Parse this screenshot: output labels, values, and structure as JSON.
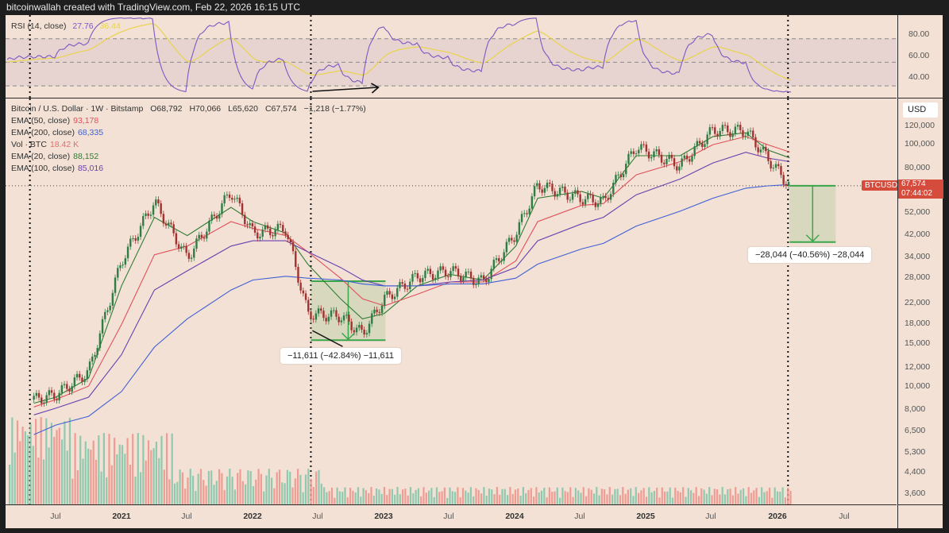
{
  "header": {
    "attribution": "bitcoinwallah created with TradingView.com, Feb 22, 2026 16:15 UTC"
  },
  "rsi_pane": {
    "label": "RSI (14, close)",
    "value": "27.76",
    "ma_value": "36.44",
    "colors": {
      "rsi": "#7e57c2",
      "ma": "#e8d44d",
      "value": "#7e57c2",
      "ma_text": "#e8d44d"
    },
    "levels": [
      70,
      50,
      30
    ],
    "axis_ticks": [
      "80.00",
      "60.00",
      "40.00"
    ]
  },
  "price_pane": {
    "legend": {
      "symbol_line": "Bitcoin / U.S. Dollar · 1W · Bitstamp",
      "open": "O68,792",
      "high": "H70,066",
      "low": "L65,620",
      "close": "C67,574",
      "change": "−1,218 (−1.77%)",
      "indicators": [
        {
          "label": "EMA (50, close)",
          "value": "93,178",
          "color": "#e0505a"
        },
        {
          "label": "EMA (200, close)",
          "value": "68,335",
          "color": "#3f5fd6"
        },
        {
          "label": "Vol · BTC",
          "value": "18.42 K",
          "color": "#e07070"
        },
        {
          "label": "EMA (20, close)",
          "value": "88,152",
          "color": "#2e7d32"
        },
        {
          "label": "EMA (100, close)",
          "value": "85,016",
          "color": "#6a3fb0"
        }
      ]
    },
    "currency": "USD",
    "axis_ticks": [
      "120,000",
      "100,000",
      "80,000",
      "52,000",
      "42,000",
      "34,000",
      "28,000",
      "22,000",
      "18,000",
      "15,000",
      "12,000",
      "10,000",
      "8,000",
      "6,500",
      "5,300",
      "4,400",
      "3,600"
    ],
    "symbol_tag": "BTCUSD",
    "last_price": "67,574",
    "countdown": "07:44:02",
    "measure_2022": "−11,611 (−42.84%) −11,611",
    "measure_2026": "−28,044 (−40.56%) −28,044"
  },
  "time_axis": {
    "labels": [
      {
        "text": "Jul",
        "year": false
      },
      {
        "text": "2021",
        "year": true
      },
      {
        "text": "Jul",
        "year": false
      },
      {
        "text": "2022",
        "year": true
      },
      {
        "text": "Jul",
        "year": false
      },
      {
        "text": "2023",
        "year": true
      },
      {
        "text": "Jul",
        "year": false
      },
      {
        "text": "2024",
        "year": true
      },
      {
        "text": "Jul",
        "year": false
      },
      {
        "text": "2025",
        "year": true
      },
      {
        "text": "Jul",
        "year": false
      },
      {
        "text": "2026",
        "year": true
      },
      {
        "text": "Jul",
        "year": false
      }
    ]
  },
  "chart_data": {
    "type": "line",
    "title": "Bitcoin / U.S. Dollar · 1W · Bitstamp",
    "xlabel": "",
    "ylabel": "USD (log scale)",
    "x": [
      "2020-05",
      "2020-07",
      "2020-10",
      "2021-01",
      "2021-04",
      "2021-07",
      "2021-11",
      "2022-01",
      "2022-04",
      "2022-06",
      "2022-09",
      "2022-11",
      "2023-01",
      "2023-04",
      "2023-07",
      "2023-10",
      "2024-01",
      "2024-03",
      "2024-07",
      "2024-09",
      "2024-12",
      "2025-04",
      "2025-07",
      "2025-10",
      "2025-12",
      "2026-02"
    ],
    "series": [
      {
        "name": "BTCUSD close (approx.)",
        "values": [
          8800,
          9200,
          11500,
          33000,
          58000,
          34000,
          64000,
          43000,
          45000,
          20000,
          19500,
          16500,
          23000,
          28500,
          30000,
          27000,
          43000,
          68000,
          60000,
          58000,
          98000,
          82000,
          115000,
          114000,
          88000,
          67574
        ]
      },
      {
        "name": "EMA (20, close)",
        "values": [
          8500,
          9000,
          10800,
          26000,
          50000,
          42000,
          55000,
          48000,
          43000,
          32000,
          23000,
          19000,
          20000,
          26000,
          29000,
          27500,
          38000,
          60000,
          64000,
          60000,
          90000,
          90000,
          108000,
          112000,
          95000,
          88152
        ]
      },
      {
        "name": "EMA (50, close)",
        "values": [
          8200,
          8800,
          10000,
          18000,
          35000,
          38000,
          48000,
          45000,
          42000,
          36000,
          28000,
          23000,
          21500,
          24000,
          27000,
          27000,
          33000,
          48000,
          56000,
          57000,
          75000,
          85000,
          100000,
          108000,
          100000,
          93178
        ]
      },
      {
        "name": "EMA (100, close)",
        "values": [
          7600,
          8100,
          9000,
          13500,
          25000,
          30000,
          38000,
          40000,
          40000,
          36000,
          31000,
          27500,
          26000,
          26000,
          27000,
          27500,
          31000,
          40000,
          47000,
          50000,
          62000,
          72000,
          84000,
          93000,
          88000,
          85016
        ]
      },
      {
        "name": "EMA (200, close)",
        "values": [
          6300,
          6900,
          7500,
          9500,
          14500,
          19000,
          25000,
          27500,
          28500,
          28000,
          27500,
          26500,
          26000,
          26000,
          26500,
          26500,
          28000,
          32000,
          37000,
          39000,
          46000,
          53000,
          60000,
          66000,
          67500,
          68335
        ]
      }
    ],
    "rsi": {
      "period": 14,
      "last": 27.76,
      "ma_last": 36.44,
      "levels": [
        70,
        50,
        30
      ],
      "range": [
        20,
        90
      ]
    },
    "volume_last": "18.42 K",
    "annotations": [
      {
        "type": "price_range",
        "period": "Jun 2022 – Dec 2022",
        "change": -11611,
        "change_pct": -42.84
      },
      {
        "type": "price_range",
        "period": "Feb 2026 projection",
        "change": -28044,
        "change_pct": -40.56
      },
      {
        "type": "vertical_line",
        "at": "2020-05"
      },
      {
        "type": "vertical_line",
        "at": "2022-06"
      },
      {
        "type": "vertical_line",
        "at": "2026-02"
      },
      {
        "type": "arrow",
        "pane": "rsi",
        "desc": "bullish divergence arrow 2022"
      }
    ],
    "yticks": [
      3600,
      4400,
      5300,
      6500,
      8000,
      10000,
      12000,
      15000,
      18000,
      22000,
      28000,
      34000,
      42000,
      52000,
      80000,
      100000,
      120000
    ],
    "grid": false,
    "legend_position": "top-left"
  }
}
